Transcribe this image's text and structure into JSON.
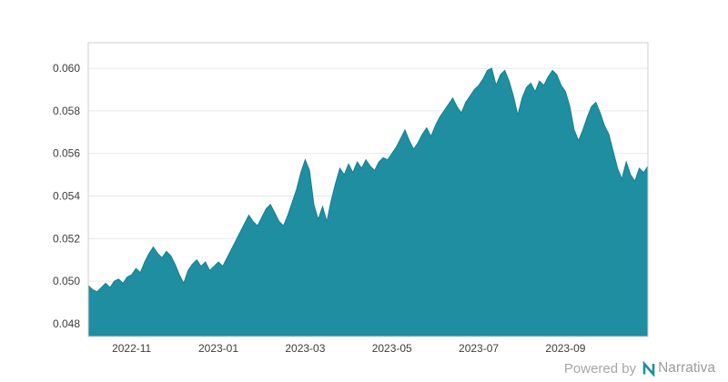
{
  "page": {
    "background": "#ffffff"
  },
  "footer": {
    "powered_by": "Powered by",
    "brand": "Narrativa",
    "logo_color": "#1f8ea1"
  },
  "chart_data": {
    "type": "area",
    "title": "",
    "xlabel": "",
    "ylabel": "",
    "fill_color": "#1f8ea1",
    "line_color": "#15808f",
    "grid_color": "#e7e7e7",
    "border_color": "#cfcfcf",
    "plot_background": "#ffffff",
    "grid": "horizontal-only",
    "legend": "none",
    "ylim": [
      0.0474,
      0.0612
    ],
    "y_ticks": [
      0.048,
      0.05,
      0.052,
      0.054,
      0.056,
      0.058,
      0.06
    ],
    "x_ticks": [
      {
        "label": "2022-11",
        "index": 10
      },
      {
        "label": "2023-01",
        "index": 30
      },
      {
        "label": "2023-03",
        "index": 50
      },
      {
        "label": "2023-05",
        "index": 70
      },
      {
        "label": "2023-07",
        "index": 90
      },
      {
        "label": "2023-09",
        "index": 110
      }
    ],
    "values": [
      0.0498,
      0.0496,
      0.0495,
      0.0497,
      0.0499,
      0.0497,
      0.05,
      0.0501,
      0.0499,
      0.0502,
      0.0503,
      0.0506,
      0.0504,
      0.0509,
      0.0513,
      0.0516,
      0.0513,
      0.0511,
      0.0514,
      0.0512,
      0.0508,
      0.0503,
      0.0499,
      0.0505,
      0.0508,
      0.051,
      0.0507,
      0.0509,
      0.0505,
      0.0507,
      0.0509,
      0.0507,
      0.0511,
      0.0515,
      0.0519,
      0.0523,
      0.0527,
      0.0531,
      0.0528,
      0.0526,
      0.053,
      0.0534,
      0.0536,
      0.0532,
      0.0528,
      0.0526,
      0.0531,
      0.0537,
      0.0543,
      0.0551,
      0.0557,
      0.0552,
      0.0536,
      0.0529,
      0.0535,
      0.0528,
      0.0538,
      0.0546,
      0.0553,
      0.055,
      0.0555,
      0.0551,
      0.0556,
      0.0553,
      0.0557,
      0.0554,
      0.0552,
      0.0556,
      0.0558,
      0.0557,
      0.056,
      0.0563,
      0.0567,
      0.0571,
      0.0566,
      0.0562,
      0.0565,
      0.0569,
      0.0572,
      0.0568,
      0.0573,
      0.0577,
      0.058,
      0.0583,
      0.0586,
      0.0582,
      0.0579,
      0.0584,
      0.0587,
      0.059,
      0.0592,
      0.0595,
      0.0599,
      0.06,
      0.0592,
      0.0597,
      0.0599,
      0.0594,
      0.0587,
      0.0578,
      0.0586,
      0.0591,
      0.0593,
      0.0589,
      0.0594,
      0.0592,
      0.0596,
      0.0599,
      0.0597,
      0.0592,
      0.0589,
      0.0582,
      0.0571,
      0.0566,
      0.0571,
      0.0577,
      0.0582,
      0.0584,
      0.0579,
      0.0573,
      0.0569,
      0.0561,
      0.0553,
      0.0548,
      0.0556,
      0.055,
      0.0547,
      0.0553,
      0.0551,
      0.0554
    ]
  }
}
